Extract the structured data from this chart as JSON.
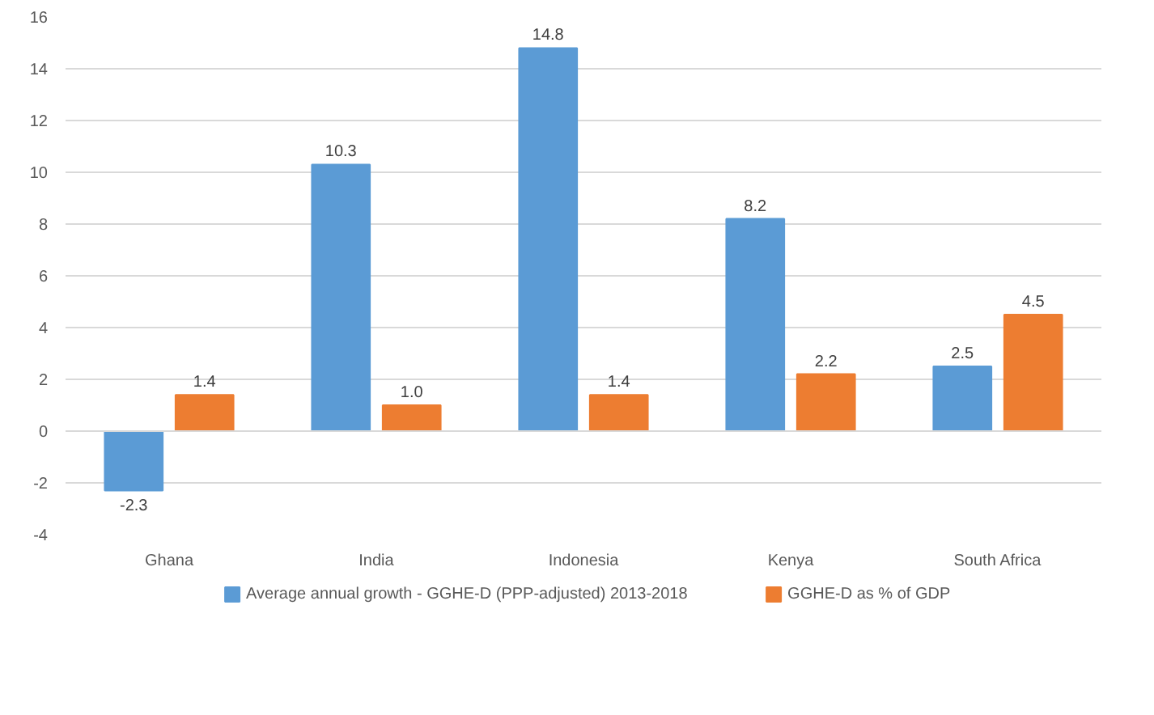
{
  "chart_data": {
    "type": "bar",
    "categories": [
      "Ghana",
      "India",
      "Indonesia",
      "Kenya",
      "South Africa"
    ],
    "series": [
      {
        "name": "Average annual growth - GGHE-D (PPP-adjusted) 2013-2018",
        "color": "#5b9bd5",
        "values": [
          -2.3,
          10.3,
          14.8,
          8.2,
          2.5
        ],
        "value_labels": [
          "-2.3",
          "10.3",
          "14.8",
          "8.2",
          "2.5"
        ]
      },
      {
        "name": "GGHE-D as % of GDP",
        "color": "#ed7d31",
        "values": [
          1.4,
          1.0,
          1.4,
          2.2,
          4.5
        ],
        "value_labels": [
          "1.4",
          "1.0",
          "1.4",
          "2.2",
          "4.5"
        ]
      }
    ],
    "ylim": [
      -4,
      16
    ],
    "yticks": [
      -4,
      -2,
      0,
      2,
      4,
      6,
      8,
      10,
      12,
      14,
      16
    ],
    "grid": "y",
    "legend": "bottom"
  }
}
